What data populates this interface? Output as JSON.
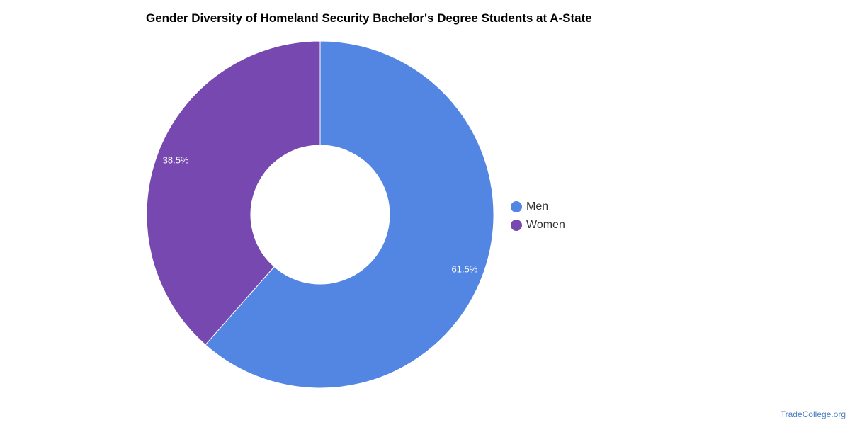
{
  "chart_data": {
    "type": "pie",
    "title": "Gender Diversity of Homeland Security Bachelor's Degree Students at A-State",
    "categories": [
      "Men",
      "Women"
    ],
    "values": [
      61.5,
      38.5
    ],
    "value_labels": [
      "61.5%",
      "38.5%"
    ],
    "colors": [
      "#5385e3",
      "#7648b0"
    ],
    "donut": true,
    "legend_placement": "right"
  },
  "watermark": "TradeCollege.org"
}
